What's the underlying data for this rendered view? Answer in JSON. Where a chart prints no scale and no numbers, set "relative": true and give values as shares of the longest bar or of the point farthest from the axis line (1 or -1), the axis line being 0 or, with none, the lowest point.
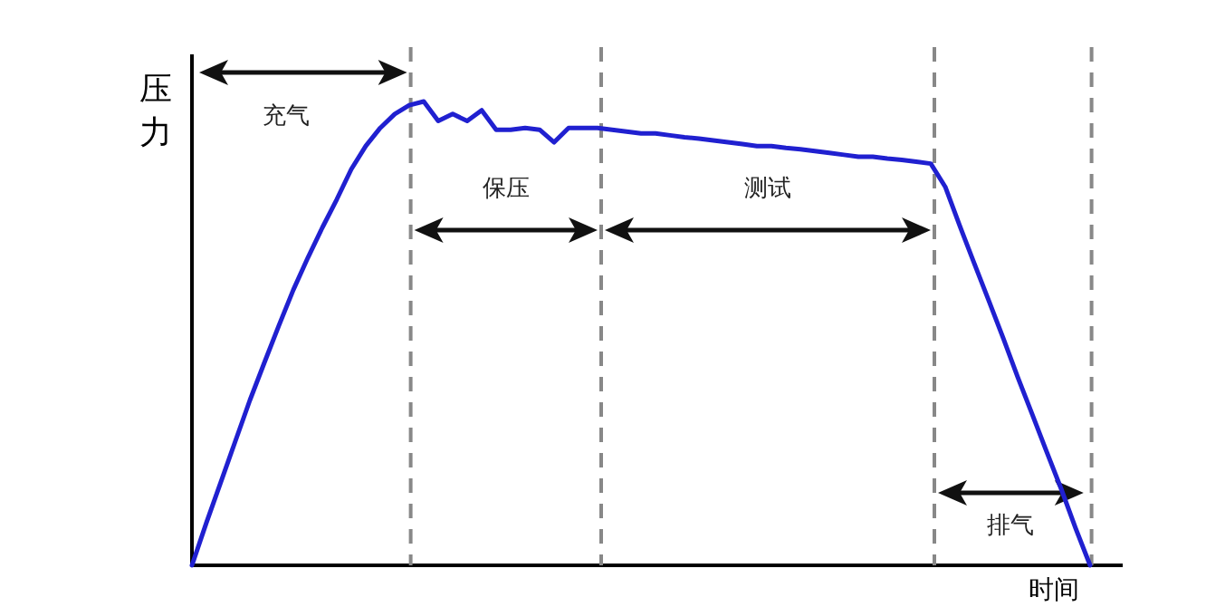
{
  "chart_data": {
    "type": "line",
    "relative": true,
    "ylabel": "压力",
    "xlabel": "时间",
    "categories": [
      null,
      null,
      null,
      null,
      null,
      null,
      null,
      null,
      null,
      null,
      null,
      null,
      null,
      null,
      null,
      null,
      null,
      null,
      null,
      null,
      null,
      null,
      null,
      null,
      null,
      null,
      null,
      null,
      null,
      null,
      null,
      null,
      null,
      null,
      null,
      null,
      null,
      null,
      null,
      null,
      null,
      null,
      null,
      null,
      null,
      null,
      null,
      null,
      null,
      null,
      null,
      null,
      null,
      null,
      null,
      null,
      null,
      null,
      null,
      null,
      null,
      null,
      null
    ],
    "series": [
      {
        "color": "#2020d0",
        "values": [
          0,
          0.092,
          0.18,
          0.268,
          0.356,
          0.437,
          0.517,
          0.594,
          0.663,
          0.728,
          0.789,
          0.854,
          0.904,
          0.943,
          0.973,
          0.992,
          1,
          0.958,
          0.973,
          0.958,
          0.981,
          0.939,
          0.939,
          0.943,
          0.939,
          0.912,
          0.943,
          0.943,
          0.943,
          0.939,
          0.935,
          0.931,
          0.931,
          0.927,
          0.923,
          0.92,
          0.916,
          0.912,
          0.908,
          0.904,
          0.904,
          0.9,
          0.897,
          0.893,
          0.889,
          0.885,
          0.881,
          0.881,
          0.877,
          0.874,
          0.87,
          0.866,
          0.816,
          0.732,
          0.651,
          0.571,
          0.49,
          0.406,
          0.326,
          0.245,
          0.165,
          0.08,
          0
        ]
      }
    ],
    "annotations": [
      "充气",
      "保压",
      "测试",
      "排气"
    ]
  }
}
